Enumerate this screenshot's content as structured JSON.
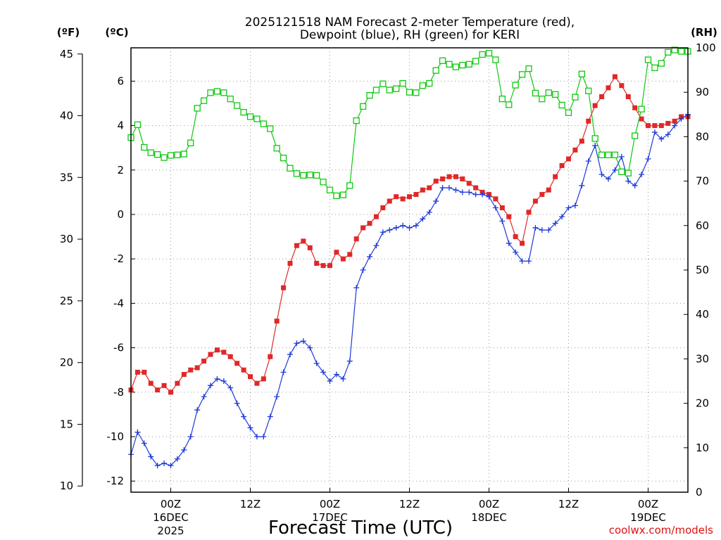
{
  "chart_data": {
    "type": "line",
    "title_line1": "2025121518 NAM Forecast 2-meter Temperature (red),",
    "title_line2": "Dewpoint (blue), RH (green) for KERI",
    "xlabel": "Forecast Time (UTC)",
    "credit": "coolwx.com/models",
    "unit_f": "(ºF)",
    "unit_c": "(ºC)",
    "unit_rh": "(RH)",
    "x_unit": "forecast hour (0 = 2025121518)",
    "xlim": [
      0,
      84
    ],
    "ylim_c": [
      -12.5,
      7.5
    ],
    "ylim_rh": [
      0,
      100
    ],
    "f_ticks": [
      "10",
      "15",
      "20",
      "25",
      "30",
      "35",
      "40",
      "45"
    ],
    "c_ticks": [
      "-12",
      "-10",
      "-8",
      "-6",
      "-4",
      "-2",
      "0",
      "2",
      "4",
      "6"
    ],
    "rh_ticks": [
      "0",
      "10",
      "20",
      "30",
      "40",
      "50",
      "60",
      "70",
      "80",
      "90",
      "100"
    ],
    "x_ticks": [
      {
        "hour": 6,
        "l1": "00Z",
        "l2": "16DEC",
        "l3": "2025"
      },
      {
        "hour": 18,
        "l1": "12Z",
        "l2": "",
        "l3": ""
      },
      {
        "hour": 30,
        "l1": "00Z",
        "l2": "17DEC",
        "l3": ""
      },
      {
        "hour": 42,
        "l1": "12Z",
        "l2": "",
        "l3": ""
      },
      {
        "hour": 54,
        "l1": "00Z",
        "l2": "18DEC",
        "l3": ""
      },
      {
        "hour": 66,
        "l1": "12Z",
        "l2": "",
        "l3": ""
      },
      {
        "hour": 78,
        "l1": "00Z",
        "l2": "19DEC",
        "l3": ""
      }
    ],
    "series": [
      {
        "name": "2-meter Temperature (°C)",
        "axis": "c",
        "color": "#e02828",
        "marker": "filled-square",
        "x": [
          0,
          1,
          2,
          3,
          4,
          5,
          6,
          7,
          8,
          9,
          10,
          11,
          12,
          13,
          14,
          15,
          16,
          17,
          18,
          19,
          20,
          21,
          22,
          23,
          24,
          25,
          26,
          27,
          28,
          29,
          30,
          31,
          32,
          33,
          34,
          35,
          36,
          37,
          38,
          39,
          40,
          41,
          42,
          43,
          44,
          45,
          46,
          47,
          48,
          49,
          50,
          51,
          52,
          53,
          54,
          55,
          56,
          57,
          58,
          59,
          60,
          61,
          62,
          63,
          64,
          65,
          66,
          67,
          68,
          69,
          70,
          71,
          72,
          73,
          74,
          75,
          76,
          77,
          78,
          79,
          80,
          81,
          82,
          83,
          84
        ],
        "values": [
          -7.9,
          -7.1,
          -7.1,
          -7.6,
          -7.9,
          -7.7,
          -8.0,
          -7.6,
          -7.2,
          -7.0,
          -6.9,
          -6.6,
          -6.3,
          -6.1,
          -6.2,
          -6.4,
          -6.7,
          -7.0,
          -7.3,
          -7.6,
          -7.4,
          -6.4,
          -4.8,
          -3.3,
          -2.2,
          -1.4,
          -1.2,
          -1.5,
          -2.2,
          -2.3,
          -2.3,
          -1.7,
          -2.0,
          -1.8,
          -1.1,
          -0.6,
          -0.4,
          -0.1,
          0.3,
          0.6,
          0.8,
          0.7,
          0.8,
          0.9,
          1.1,
          1.2,
          1.5,
          1.6,
          1.7,
          1.7,
          1.6,
          1.4,
          1.2,
          1.0,
          0.9,
          0.7,
          0.3,
          -0.1,
          -1.0,
          -1.3,
          0.1,
          0.6,
          0.9,
          1.1,
          1.7,
          2.2,
          2.5,
          2.9,
          3.3,
          4.2,
          4.9,
          5.3,
          5.7,
          6.2,
          5.8,
          5.3,
          4.8,
          4.3,
          4.0,
          4.0,
          4.0,
          4.1,
          4.2,
          4.4,
          4.4
        ]
      },
      {
        "name": "Dewpoint (°C)",
        "axis": "c",
        "color": "#1e3ad8",
        "marker": "plus",
        "x": [
          0,
          1,
          2,
          3,
          4,
          5,
          6,
          7,
          8,
          9,
          10,
          11,
          12,
          13,
          14,
          15,
          16,
          17,
          18,
          19,
          20,
          21,
          22,
          23,
          24,
          25,
          26,
          27,
          28,
          29,
          30,
          31,
          32,
          33,
          34,
          35,
          36,
          37,
          38,
          39,
          40,
          41,
          42,
          43,
          44,
          45,
          46,
          47,
          48,
          49,
          50,
          51,
          52,
          53,
          54,
          55,
          56,
          57,
          58,
          59,
          60,
          61,
          62,
          63,
          64,
          65,
          66,
          67,
          68,
          69,
          70,
          71,
          72,
          73,
          74,
          75,
          76,
          77,
          78,
          79,
          80,
          81,
          82,
          83,
          84
        ],
        "values": [
          -10.8,
          -9.8,
          -10.3,
          -10.9,
          -11.3,
          -11.2,
          -11.3,
          -11.0,
          -10.6,
          -10.0,
          -8.8,
          -8.2,
          -7.7,
          -7.4,
          -7.5,
          -7.8,
          -8.5,
          -9.1,
          -9.6,
          -10.0,
          -10.0,
          -9.1,
          -8.2,
          -7.1,
          -6.3,
          -5.8,
          -5.7,
          -6.0,
          -6.7,
          -7.1,
          -7.5,
          -7.2,
          -7.4,
          -6.6,
          -3.3,
          -2.5,
          -1.9,
          -1.4,
          -0.8,
          -0.7,
          -0.6,
          -0.5,
          -0.6,
          -0.5,
          -0.2,
          0.1,
          0.6,
          1.2,
          1.2,
          1.1,
          1.0,
          1.0,
          0.9,
          0.9,
          0.8,
          0.3,
          -0.3,
          -1.3,
          -1.7,
          -2.1,
          -2.1,
          -0.6,
          -0.7,
          -0.7,
          -0.4,
          -0.1,
          0.3,
          0.4,
          1.3,
          2.4,
          3.1,
          1.8,
          1.6,
          2.0,
          2.6,
          1.5,
          1.3,
          1.8,
          2.5,
          3.7,
          3.4,
          3.6,
          4.0,
          4.3,
          4.5
        ]
      },
      {
        "name": "RH (%)",
        "axis": "rh",
        "color": "#10c810",
        "marker": "open-square",
        "x": [
          0,
          1,
          2,
          3,
          4,
          5,
          6,
          7,
          8,
          9,
          10,
          11,
          12,
          13,
          14,
          15,
          16,
          17,
          18,
          19,
          20,
          21,
          22,
          23,
          24,
          25,
          26,
          27,
          28,
          29,
          30,
          31,
          32,
          33,
          34,
          35,
          36,
          37,
          38,
          39,
          40,
          41,
          42,
          43,
          44,
          45,
          46,
          47,
          48,
          49,
          50,
          51,
          52,
          53,
          54,
          55,
          56,
          57,
          58,
          59,
          60,
          61,
          62,
          63,
          64,
          65,
          66,
          67,
          68,
          69,
          70,
          71,
          72,
          73,
          74,
          75,
          76,
          77,
          78,
          79,
          80,
          81,
          82,
          83,
          84
        ],
        "values": [
          79.8,
          82.7,
          77.6,
          76.4,
          76.0,
          75.3,
          75.8,
          75.9,
          76.1,
          78.6,
          86.4,
          88.1,
          89.9,
          90.2,
          89.9,
          88.5,
          87.0,
          85.5,
          84.5,
          84.0,
          82.9,
          81.8,
          77.4,
          75.2,
          72.9,
          71.7,
          71.3,
          71.4,
          71.3,
          69.8,
          68.0,
          66.7,
          66.9,
          69.0,
          83.6,
          86.8,
          89.3,
          90.5,
          91.9,
          90.5,
          90.8,
          92.0,
          90.0,
          89.9,
          91.5,
          92.0,
          94.9,
          97.1,
          96.3,
          95.7,
          96.1,
          96.3,
          97.0,
          98.5,
          98.8,
          97.3,
          88.5,
          87.2,
          91.6,
          94.0,
          95.3,
          89.8,
          88.5,
          89.9,
          89.5,
          87.1,
          85.4,
          88.9,
          94.1,
          90.3,
          79.6,
          75.9,
          75.9,
          75.9,
          72.1,
          71.8,
          80.2,
          86.2,
          97.3,
          95.5,
          96.5,
          99.0,
          99.5,
          99.2,
          99.2
        ]
      }
    ]
  }
}
